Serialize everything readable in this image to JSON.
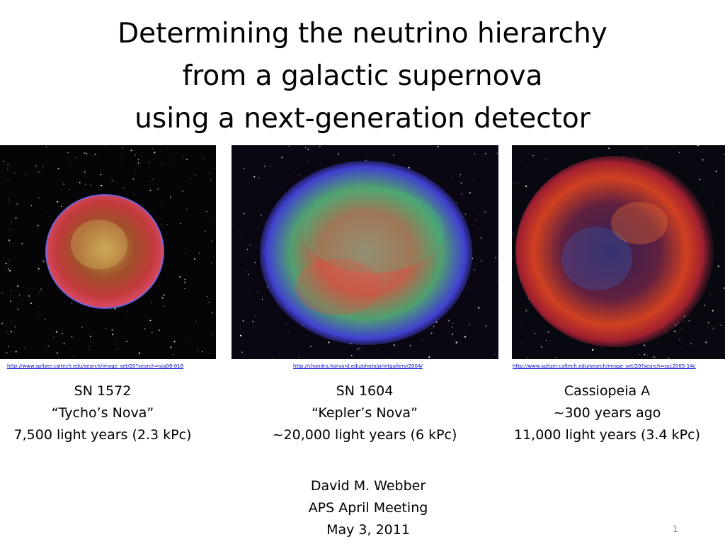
{
  "title": {
    "line1": "Determining the neutrino hierarchy",
    "line2": "from a galactic supernova",
    "line3": "using a next-generation detector"
  },
  "images": [
    {
      "name": "tycho-supernova-remnant",
      "link": "http://www.spitzer.caltech.edu/search/image_set/20?search=sig08-016",
      "caption": [
        "SN 1572",
        "“Tycho’s Nova”",
        "7,500 light years (2.3 kPc)"
      ]
    },
    {
      "name": "kepler-supernova-remnant",
      "link": "http://chandra.harvard.edu/photo/printgallery/2004/",
      "caption": [
        "SN 1604",
        "“Kepler’s Nova”",
        "~20,000 light years (6 kPc)"
      ]
    },
    {
      "name": "cassiopeia-a-remnant",
      "link": "http://www.spitzer.caltech.edu/search/image_set/20?search=ssc2005-14c",
      "caption": [
        "Cassiopeia A",
        "~300 years ago",
        "11,000 light years (3.4 kPc)"
      ]
    }
  ],
  "author": {
    "name": "David M. Webber",
    "meeting": "APS April Meeting",
    "date": "May 3, 2011"
  },
  "slide_number": "1",
  "colors": {
    "link": "#0000cc",
    "slide_number": "#8a8a8a",
    "image_background": "#050508"
  }
}
